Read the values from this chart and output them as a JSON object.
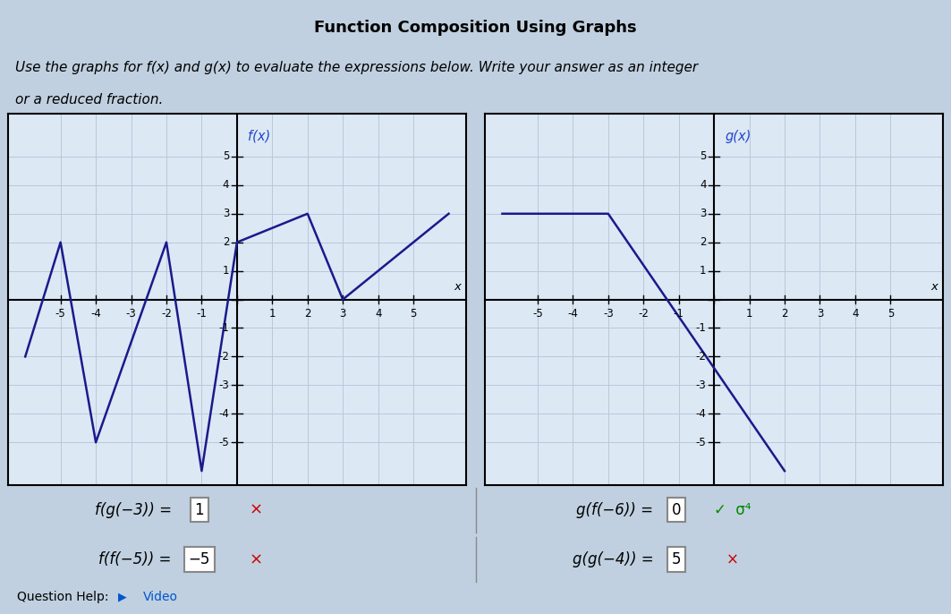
{
  "title": "Function Composition Using Graphs",
  "instruction_line1": "Use the graphs for f(x) and g(x) to evaluate the expressions below. Write your answer as an integer",
  "instruction_line2": "or a reduced fraction.",
  "f_points": [
    [
      -6,
      -2
    ],
    [
      -5,
      2
    ],
    [
      -4,
      -5
    ],
    [
      -2,
      2
    ],
    [
      -1,
      -6
    ],
    [
      0,
      2
    ],
    [
      2,
      3
    ],
    [
      3,
      0
    ],
    [
      6,
      3
    ]
  ],
  "g_points": [
    [
      -6,
      3
    ],
    [
      -3,
      3
    ],
    [
      2,
      -6
    ]
  ],
  "xlim": [
    -6.5,
    6.5
  ],
  "ylim": [
    -6.5,
    6.5
  ],
  "grid_color": "#b8c8dc",
  "line_color": "#1a1a8c",
  "axis_color": "#000000",
  "bg_color": "#dce8f4",
  "outer_bg": "#c0d0e0",
  "row1_left_label": "f(g(−3)) =",
  "row1_left_val": "1",
  "row1_left_mark": "×",
  "row1_left_mark_color": "#cc0000",
  "row1_right_label": "g(f(−6)) =",
  "row1_right_val": "0",
  "row1_right_mark": "✓  σ⁴",
  "row1_right_mark_color": "#008800",
  "row2_left_label": "f(f(−5)) =",
  "row2_left_val": "−5",
  "row2_left_mark": "×",
  "row2_left_mark_color": "#cc0000",
  "row2_right_label": "g(g(−4)) =",
  "row2_right_val": "5",
  "row2_right_mark": "×",
  "row2_right_mark_color": "#cc0000",
  "help_text": "Question Help:",
  "help_video": "Video",
  "tick_fontsize": 8.5,
  "label_fontsize": 10.5,
  "title_fontsize": 13,
  "instr_fontsize": 11
}
